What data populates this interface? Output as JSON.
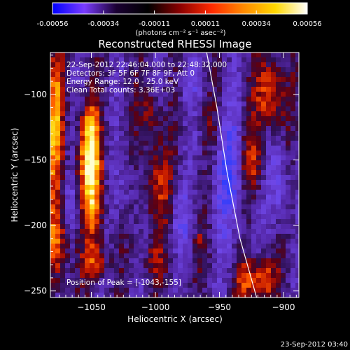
{
  "colorbar": {
    "tick_labels": [
      "-0.00056",
      "-0.00034",
      "-0.00011",
      "0.00011",
      "0.00034",
      "0.00056"
    ],
    "unit_label": "(photons cm⁻² s⁻¹ asec⁻²)",
    "colors": [
      "#0000ff",
      "#7a3cff",
      "#1b0033",
      "#000000",
      "#8a0000",
      "#ff2a00",
      "#ff8a00",
      "#ffd800",
      "#ffffff"
    ]
  },
  "plot": {
    "title": "Reconstructed RHESSI Image",
    "xlabel": "Heliocentric X (arcsec)",
    "ylabel": "Heliocentric Y (arcsec)",
    "xlim": [
      -1082,
      -888
    ],
    "ylim": [
      -255,
      -68
    ],
    "x_ticks": [
      -1050,
      -1000,
      -950,
      -900
    ],
    "x_tick_labels": [
      "−1050",
      "−1000",
      "−950",
      "−900"
    ],
    "y_ticks": [
      -100,
      -150,
      -200,
      -250
    ],
    "y_tick_labels": [
      "−100",
      "−150",
      "−200",
      "−250"
    ],
    "info_lines": [
      "22-Sep-2012 22:46:04.000 to 22:48:32.000",
      "Detectors: 3F 5F 6F 7F 8F 9F, Att 0",
      "Energy Range: 12.0 - 25.0 keV",
      "Clean     Total counts: 3.36E+03"
    ],
    "peak_label": "Position of Peak = [-1043,-155]",
    "limb_curve": [
      [
        -960,
        -68
      ],
      [
        -952,
        -110
      ],
      [
        -944,
        -160
      ],
      [
        -934,
        -210
      ],
      [
        -921,
        -255
      ]
    ]
  },
  "timestamp": "23-Sep-2012 03:40"
}
